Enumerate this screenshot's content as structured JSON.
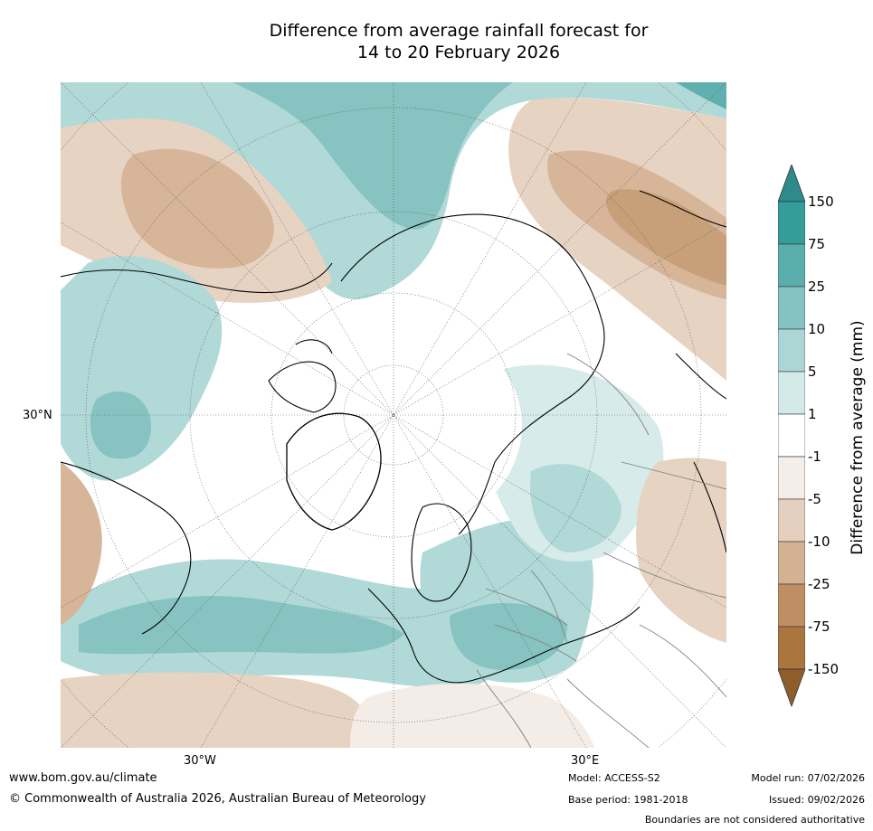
{
  "title": {
    "line1": "Difference from average rainfall forecast for",
    "line2": "14 to 20 February 2026"
  },
  "map": {
    "projection": "polar stereographic, North Pole",
    "axis_labels": {
      "lat30n": "30°N",
      "lon30w": "30°W",
      "lon30e": "30°E"
    },
    "palette": {
      "ocean_dry_heavy": "#c7a07a",
      "dry_moderate": "#d6b598",
      "dry_light": "#e6d3c2",
      "dry_faint": "#f4ece6",
      "neutral": "#ffffff",
      "wet_faint": "#d6ebea",
      "wet_light": "#b0d9d8",
      "wet_moderate": "#86c3c1",
      "wet_heavy": "#5fb0ae",
      "coast": "#000000",
      "border": "#808080",
      "grid": "#555555"
    }
  },
  "colorbar": {
    "title": "Difference from average (mm)",
    "ticks": [
      "150",
      "75",
      "25",
      "10",
      "5",
      "1",
      "-1",
      "-5",
      "-10",
      "-25",
      "-75",
      "-150"
    ],
    "colors": [
      "#2e8b8b",
      "#349c9a",
      "#5aaeac",
      "#84c3c1",
      "#acd6d5",
      "#d4eae9",
      "#ffffff",
      "#f5ede8",
      "#e5d0bf",
      "#d2b293",
      "#bf8e62",
      "#ab7540",
      "#8f5c2c"
    ]
  },
  "footer": {
    "website": "www.bom.gov.au/climate",
    "copyright": "© Commonwealth of Australia 2026, Australian Bureau of Meteorology",
    "model": "Model: ACCESS-S2",
    "base_period": "Base period: 1981-2018",
    "model_run": "Model run: 07/02/2026",
    "issued": "Issued: 09/02/2026",
    "disclaimer": "Boundaries are not considered authoritative"
  }
}
